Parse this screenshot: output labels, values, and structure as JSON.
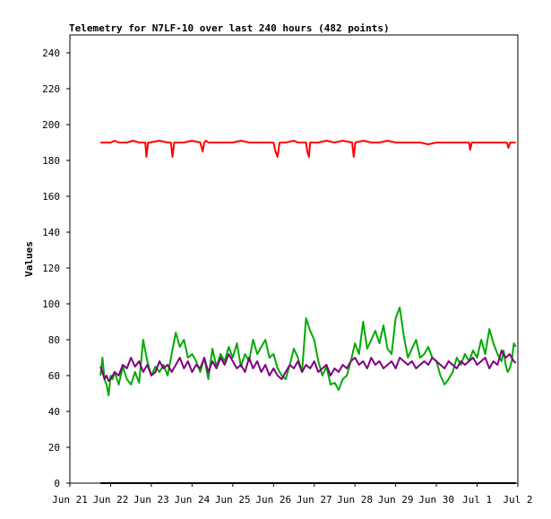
{
  "chart_data": {
    "type": "line",
    "title": "Telemetry for N7LF-10 over last 240 hours (482 points)",
    "ylabel": "Values",
    "xlabel": "",
    "ylim": [
      0,
      250
    ],
    "xlim": [
      0,
      11
    ],
    "yticks": [
      0,
      20,
      40,
      60,
      80,
      100,
      120,
      140,
      160,
      180,
      200,
      220,
      240
    ],
    "xticks": [
      {
        "x": 0,
        "label": "Jun 21"
      },
      {
        "x": 1,
        "label": "Jun 22"
      },
      {
        "x": 2,
        "label": "Jun 23"
      },
      {
        "x": 3,
        "label": "Jun 24"
      },
      {
        "x": 4,
        "label": "Jun 25"
      },
      {
        "x": 5,
        "label": "Jun 26"
      },
      {
        "x": 6,
        "label": "Jun 27"
      },
      {
        "x": 7,
        "label": "Jun 28"
      },
      {
        "x": 8,
        "label": "Jun 29"
      },
      {
        "x": 9,
        "label": "Jun 30"
      },
      {
        "x": 10,
        "label": "Jul 1"
      },
      {
        "x": 11,
        "label": "Jul 2"
      }
    ],
    "grid": false,
    "series": [
      {
        "color": "#ff0000",
        "x": [
          0.75,
          1.0,
          1.1,
          1.2,
          1.4,
          1.55,
          1.7,
          1.85,
          1.88,
          1.92,
          1.96,
          2.2,
          2.4,
          2.48,
          2.52,
          2.56,
          2.8,
          3.0,
          3.2,
          3.26,
          3.3,
          3.34,
          3.4,
          3.6,
          3.8,
          4.0,
          4.2,
          4.4,
          4.6,
          4.8,
          5.0,
          5.05,
          5.1,
          5.15,
          5.3,
          5.5,
          5.6,
          5.8,
          5.83,
          5.87,
          5.9,
          6.1,
          6.3,
          6.5,
          6.7,
          6.93,
          6.97,
          7.01,
          7.2,
          7.4,
          7.6,
          7.8,
          8.0,
          8.2,
          8.4,
          8.6,
          8.8,
          9.0,
          9.2,
          9.4,
          9.6,
          9.8,
          9.83,
          9.87,
          9.9,
          10.1,
          10.3,
          10.5,
          10.6,
          10.73,
          10.77,
          10.81,
          10.95
        ],
        "values": [
          190,
          190,
          191,
          190,
          190,
          191,
          190,
          190,
          182,
          190,
          190,
          191,
          190,
          190,
          182,
          190,
          190,
          191,
          190,
          185,
          190,
          191,
          190,
          190,
          190,
          190,
          191,
          190,
          190,
          190,
          190,
          185,
          182,
          190,
          190,
          191,
          190,
          190,
          185,
          182,
          190,
          190,
          191,
          190,
          191,
          190,
          182,
          190,
          191,
          190,
          190,
          191,
          190,
          190,
          190,
          190,
          189,
          190,
          190,
          190,
          190,
          190,
          186,
          190,
          190,
          190,
          190,
          190,
          190,
          190,
          187,
          190,
          190
        ]
      },
      {
        "color": "#00aa00",
        "x": [
          0.75,
          0.8,
          0.85,
          0.9,
          0.95,
          1.0,
          1.05,
          1.1,
          1.2,
          1.3,
          1.4,
          1.5,
          1.6,
          1.7,
          1.75,
          1.8,
          1.9,
          2.0,
          2.1,
          2.2,
          2.3,
          2.4,
          2.5,
          2.6,
          2.7,
          2.8,
          2.9,
          3.0,
          3.1,
          3.2,
          3.3,
          3.4,
          3.5,
          3.6,
          3.7,
          3.8,
          3.9,
          4.0,
          4.1,
          4.2,
          4.3,
          4.4,
          4.5,
          4.6,
          4.7,
          4.8,
          4.9,
          5.0,
          5.1,
          5.2,
          5.3,
          5.4,
          5.5,
          5.6,
          5.7,
          5.8,
          5.9,
          6.0,
          6.1,
          6.2,
          6.3,
          6.4,
          6.5,
          6.6,
          6.7,
          6.8,
          6.9,
          7.0,
          7.1,
          7.2,
          7.3,
          7.4,
          7.5,
          7.6,
          7.7,
          7.8,
          7.9,
          8.0,
          8.1,
          8.2,
          8.3,
          8.4,
          8.5,
          8.6,
          8.7,
          8.8,
          8.9,
          9.0,
          9.1,
          9.2,
          9.3,
          9.4,
          9.5,
          9.6,
          9.7,
          9.8,
          9.9,
          10.0,
          10.1,
          10.2,
          10.3,
          10.4,
          10.5,
          10.6,
          10.65,
          10.7,
          10.75,
          10.8,
          10.85,
          10.9,
          10.95
        ],
        "values": [
          60,
          70,
          58,
          55,
          49,
          60,
          58,
          62,
          55,
          65,
          58,
          55,
          62,
          56,
          68,
          80,
          68,
          60,
          65,
          62,
          66,
          60,
          72,
          84,
          76,
          80,
          70,
          72,
          68,
          62,
          70,
          58,
          75,
          65,
          72,
          68,
          76,
          70,
          78,
          65,
          72,
          68,
          80,
          72,
          76,
          80,
          70,
          72,
          64,
          60,
          58,
          66,
          75,
          70,
          62,
          92,
          85,
          80,
          68,
          60,
          65,
          55,
          56,
          52,
          58,
          60,
          68,
          78,
          72,
          90,
          75,
          80,
          85,
          78,
          88,
          75,
          72,
          92,
          98,
          82,
          70,
          75,
          80,
          70,
          72,
          76,
          70,
          68,
          60,
          55,
          58,
          62,
          70,
          66,
          72,
          68,
          74,
          70,
          80,
          72,
          86,
          78,
          72,
          68,
          74,
          66,
          62,
          64,
          68,
          78,
          76
        ]
      },
      {
        "color": "#800080",
        "x": [
          0.75,
          0.8,
          0.85,
          0.9,
          0.95,
          1.0,
          1.1,
          1.2,
          1.3,
          1.4,
          1.5,
          1.6,
          1.7,
          1.8,
          1.9,
          2.0,
          2.1,
          2.2,
          2.3,
          2.4,
          2.5,
          2.6,
          2.7,
          2.8,
          2.9,
          3.0,
          3.1,
          3.2,
          3.3,
          3.4,
          3.5,
          3.6,
          3.7,
          3.8,
          3.9,
          4.0,
          4.1,
          4.2,
          4.3,
          4.4,
          4.5,
          4.6,
          4.7,
          4.8,
          4.9,
          5.0,
          5.1,
          5.2,
          5.3,
          5.4,
          5.5,
          5.6,
          5.7,
          5.8,
          5.9,
          6.0,
          6.1,
          6.2,
          6.3,
          6.4,
          6.5,
          6.6,
          6.7,
          6.8,
          6.9,
          7.0,
          7.1,
          7.2,
          7.3,
          7.4,
          7.5,
          7.6,
          7.7,
          7.8,
          7.9,
          8.0,
          8.1,
          8.2,
          8.3,
          8.4,
          8.5,
          8.6,
          8.7,
          8.8,
          8.9,
          9.0,
          9.1,
          9.2,
          9.3,
          9.4,
          9.5,
          9.6,
          9.7,
          9.8,
          9.9,
          10.0,
          10.1,
          10.2,
          10.3,
          10.4,
          10.5,
          10.6,
          10.7,
          10.8,
          10.9,
          10.95
        ],
        "values": [
          65,
          62,
          58,
          60,
          57,
          58,
          62,
          60,
          66,
          64,
          70,
          65,
          68,
          62,
          66,
          60,
          62,
          68,
          64,
          66,
          62,
          66,
          70,
          64,
          68,
          62,
          66,
          64,
          70,
          62,
          68,
          64,
          70,
          66,
          72,
          68,
          64,
          66,
          62,
          70,
          64,
          68,
          62,
          66,
          60,
          64,
          60,
          58,
          62,
          66,
          64,
          68,
          62,
          66,
          64,
          68,
          62,
          64,
          66,
          60,
          64,
          62,
          66,
          64,
          68,
          70,
          66,
          68,
          64,
          70,
          66,
          68,
          64,
          66,
          68,
          64,
          70,
          68,
          66,
          68,
          64,
          66,
          68,
          66,
          70,
          68,
          66,
          64,
          68,
          66,
          64,
          68,
          66,
          68,
          70,
          66,
          68,
          70,
          64,
          68,
          66,
          74,
          70,
          72,
          68,
          67
        ]
      },
      {
        "color": "#000000",
        "x": [
          0.75,
          10.95
        ],
        "values": [
          0,
          0
        ]
      }
    ]
  }
}
